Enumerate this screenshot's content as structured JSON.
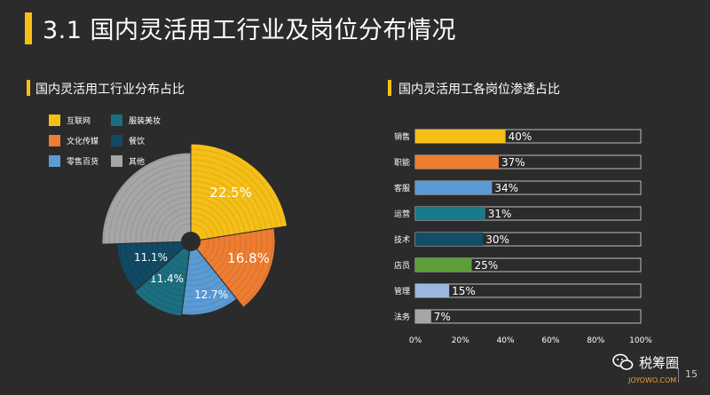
{
  "header": {
    "title": "3.1 国内灵活用工行业及岗位分布情况"
  },
  "left_section": {
    "title": "国内灵活用工行业分布占比"
  },
  "right_section": {
    "title": "国内灵活用工各岗位渗透占比"
  },
  "footer": {
    "brand": "税筹圈",
    "page": "15",
    "logo_text": "JOYOWO.COM"
  },
  "colors": {
    "accent": "#f6bf17",
    "background": "#2b2b2b"
  },
  "chart_data": [
    {
      "type": "pie",
      "labels": [
        "互联网",
        "文化传媒",
        "零售百货",
        "服装美妆",
        "餐饮",
        "其他"
      ],
      "values": [
        22.5,
        16.8,
        12.7,
        11.4,
        11.1,
        25.5
      ],
      "value_labels": [
        "22.5%",
        "16.8%",
        "12.7%",
        "11.4%",
        "11.1%",
        ""
      ],
      "colors": [
        "#f6bf17",
        "#ed7d31",
        "#5b9bd5",
        "#1b6f80",
        "#114a64",
        "#a6a6a6"
      ]
    },
    {
      "type": "bar",
      "orientation": "horizontal",
      "categories": [
        "销售",
        "职能",
        "客服",
        "运营",
        "技术",
        "店员",
        "管理",
        "法务"
      ],
      "values": [
        40,
        37,
        34,
        31,
        30,
        25,
        15,
        7
      ],
      "value_labels": [
        "40%",
        "37%",
        "34%",
        "31%",
        "30%",
        "25%",
        "15%",
        "7%"
      ],
      "colors": [
        "#f6bf17",
        "#ed7d31",
        "#5b9bd5",
        "#1b7a8a",
        "#134e68",
        "#5e9e3a",
        "#9db8e0",
        "#a6a6a6"
      ],
      "xlim": [
        0,
        100
      ],
      "xticks": [
        "0%",
        "20%",
        "40%",
        "60%",
        "80%",
        "100%"
      ]
    }
  ]
}
